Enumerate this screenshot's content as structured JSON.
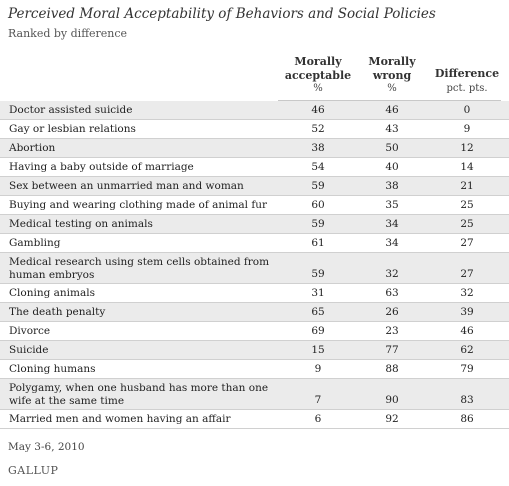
{
  "title": "Perceived Moral Acceptability of Behaviors and Social Policies",
  "subtitle": "Ranked by difference",
  "columns": {
    "acceptable": "Morally acceptable",
    "wrong": "Morally wrong",
    "difference": "Difference"
  },
  "units": {
    "acceptable": "%",
    "wrong": "%",
    "difference": "pct. pts."
  },
  "rows": [
    {
      "label": "Doctor assisted suicide",
      "acceptable": "46",
      "wrong": "46",
      "difference": "0"
    },
    {
      "label": "Gay or lesbian relations",
      "acceptable": "52",
      "wrong": "43",
      "difference": "9"
    },
    {
      "label": "Abortion",
      "acceptable": "38",
      "wrong": "50",
      "difference": "12"
    },
    {
      "label": "Having a baby outside of marriage",
      "acceptable": "54",
      "wrong": "40",
      "difference": "14"
    },
    {
      "label": "Sex between an unmarried man and woman",
      "acceptable": "59",
      "wrong": "38",
      "difference": "21"
    },
    {
      "label": "Buying and wearing clothing made of animal fur",
      "acceptable": "60",
      "wrong": "35",
      "difference": "25"
    },
    {
      "label": "Medical testing on animals",
      "acceptable": "59",
      "wrong": "34",
      "difference": "25"
    },
    {
      "label": "Gambling",
      "acceptable": "61",
      "wrong": "34",
      "difference": "27"
    },
    {
      "label": "Medical research using stem cells obtained from human embryos",
      "acceptable": "59",
      "wrong": "32",
      "difference": "27"
    },
    {
      "label": "Cloning animals",
      "acceptable": "31",
      "wrong": "63",
      "difference": "32"
    },
    {
      "label": "The death penalty",
      "acceptable": "65",
      "wrong": "26",
      "difference": "39"
    },
    {
      "label": "Divorce",
      "acceptable": "69",
      "wrong": "23",
      "difference": "46"
    },
    {
      "label": "Suicide",
      "acceptable": "15",
      "wrong": "77",
      "difference": "62"
    },
    {
      "label": "Cloning humans",
      "acceptable": "9",
      "wrong": "88",
      "difference": "79"
    },
    {
      "label": "Polygamy, when one husband has more than one wife at the same time",
      "acceptable": "7",
      "wrong": "90",
      "difference": "83"
    },
    {
      "label": "Married men and women having an affair",
      "acceptable": "6",
      "wrong": "92",
      "difference": "86"
    }
  ],
  "date": "May 3-6, 2010",
  "source": "GALLUP"
}
